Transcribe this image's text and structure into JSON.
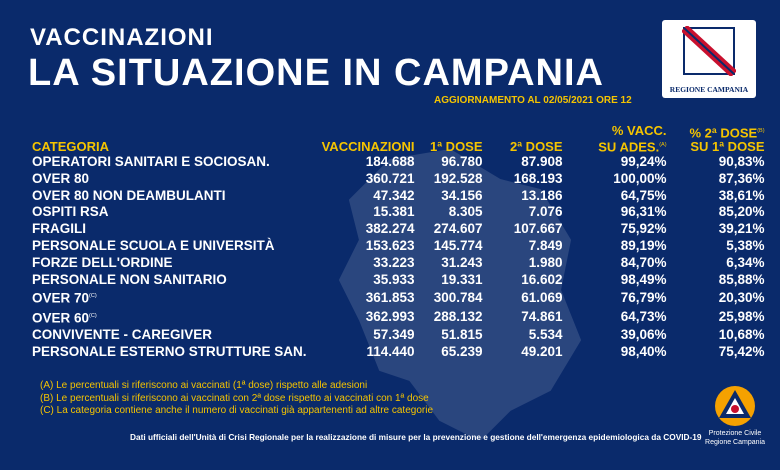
{
  "header": {
    "kicker": "VACCINAZIONI",
    "title": "LA SITUAZIONE IN CAMPANIA",
    "update": "AGGIORNAMENTO AL 02/05/2021 ORE 12"
  },
  "logo": {
    "text": "REGIONE CAMPANIA"
  },
  "table": {
    "headers": {
      "categoria": "CATEGORIA",
      "vaccinazioni": "VACCINAZIONI",
      "dose1": "1ª DOSE",
      "dose2": "2ª DOSE",
      "perc_vacc_1": "% VACC.",
      "perc_vacc_2": "SU ADES.",
      "perc_vacc_sup": "(A)",
      "perc_dose_1": "% 2ª DOSE",
      "perc_dose_2": "SU 1ª DOSE",
      "perc_dose_sup": "(B)"
    },
    "rows": [
      {
        "cat": "OPERATORI SANITARI E SOCIOSAN.",
        "sup": "",
        "vacc": "184.688",
        "d1": "96.780",
        "d2": "87.908",
        "p1": "99,24%",
        "p2": "90,83%"
      },
      {
        "cat": "OVER 80",
        "sup": "",
        "vacc": "360.721",
        "d1": "192.528",
        "d2": "168.193",
        "p1": "100,00%",
        "p2": "87,36%"
      },
      {
        "cat": "OVER 80 NON DEAMBULANTI",
        "sup": "",
        "vacc": "47.342",
        "d1": "34.156",
        "d2": "13.186",
        "p1": "64,75%",
        "p2": "38,61%"
      },
      {
        "cat": "OSPITI RSA",
        "sup": "",
        "vacc": "15.381",
        "d1": "8.305",
        "d2": "7.076",
        "p1": "96,31%",
        "p2": "85,20%"
      },
      {
        "cat": "FRAGILI",
        "sup": "",
        "vacc": "382.274",
        "d1": "274.607",
        "d2": "107.667",
        "p1": "75,92%",
        "p2": "39,21%"
      },
      {
        "cat": "PERSONALE SCUOLA E UNIVERSITÀ",
        "sup": "",
        "vacc": "153.623",
        "d1": "145.774",
        "d2": "7.849",
        "p1": "89,19%",
        "p2": "5,38%"
      },
      {
        "cat": "FORZE DELL'ORDINE",
        "sup": "",
        "vacc": "33.223",
        "d1": "31.243",
        "d2": "1.980",
        "p1": "84,70%",
        "p2": "6,34%"
      },
      {
        "cat": "PERSONALE NON SANITARIO",
        "sup": "",
        "vacc": "35.933",
        "d1": "19.331",
        "d2": "16.602",
        "p1": "98,49%",
        "p2": "85,88%"
      },
      {
        "cat": "OVER 70",
        "sup": "(C)",
        "vacc": "361.853",
        "d1": "300.784",
        "d2": "61.069",
        "p1": "76,79%",
        "p2": "20,30%"
      },
      {
        "cat": "OVER 60",
        "sup": "(C)",
        "vacc": "362.993",
        "d1": "288.132",
        "d2": "74.861",
        "p1": "64,73%",
        "p2": "25,98%"
      },
      {
        "cat": "CONVIVENTE - CAREGIVER",
        "sup": "",
        "vacc": "57.349",
        "d1": "51.815",
        "d2": "5.534",
        "p1": "39,06%",
        "p2": "10,68%"
      },
      {
        "cat": "PERSONALE ESTERNO STRUTTURE SAN.",
        "sup": "",
        "vacc": "114.440",
        "d1": "65.239",
        "d2": "49.201",
        "p1": "98,40%",
        "p2": "75,42%"
      }
    ]
  },
  "notes": [
    "(A) Le percentuali si riferiscono ai vaccinati (1ª dose) rispetto alle adesioni",
    "(B) Le percentuali si riferiscono ai vaccinati con 2ª dose rispetto ai vaccinati con 1ª dose",
    "(C) La categoria contiene anche il numero di vaccinati già appartenenti ad altre categorie"
  ],
  "footer": "Dati ufficiali dell'Unità di Crisi Regionale per la realizzazione di misure per la prevenzione e gestione dell'emergenza epidemiologica da COVID-19",
  "protezione": {
    "line1": "Protezione Civile",
    "line2": "Regione Campania"
  },
  "colors": {
    "background": "#0a2a6b",
    "accent": "#f5c400",
    "text": "#ffffff"
  }
}
